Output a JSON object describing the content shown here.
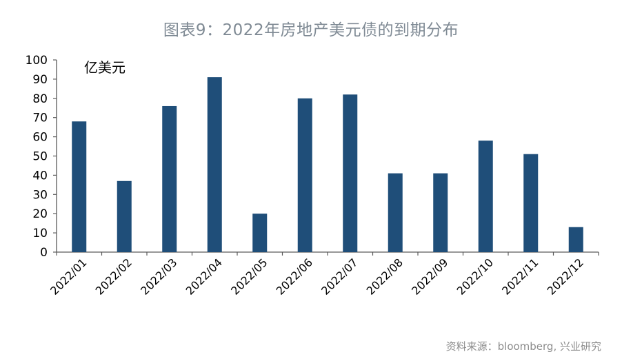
{
  "title": "图表9：2022年房地产美元债的到期分布",
  "source": "资料来源：bloomberg, 兴业研究",
  "colors": {
    "bar": "#1f4e79",
    "axis": "#595959",
    "text": "#000000"
  },
  "chart_data": {
    "type": "bar",
    "unit_label": "亿美元",
    "categories": [
      "2022/01",
      "2022/02",
      "2022/03",
      "2022/04",
      "2022/05",
      "2022/06",
      "2022/07",
      "2022/08",
      "2022/09",
      "2022/10",
      "2022/11",
      "2022/12"
    ],
    "values": [
      68,
      37,
      76,
      91,
      20,
      80,
      82,
      41,
      41,
      58,
      51,
      13
    ],
    "ylim": [
      0,
      100
    ],
    "yticks": [
      0,
      10,
      20,
      30,
      40,
      50,
      60,
      70,
      80,
      90,
      100
    ],
    "grid": false,
    "legend": "none"
  }
}
